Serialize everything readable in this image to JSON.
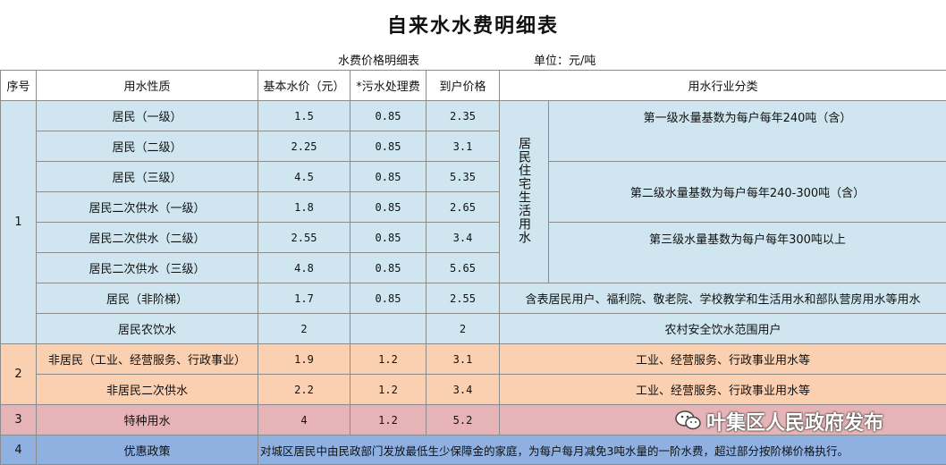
{
  "title": "自来水水费明细表",
  "subheader": {
    "left": "水费价格明细表",
    "right": "单位：元/吨"
  },
  "columns": [
    "序号",
    "用水性质",
    "基本水价（元）",
    "*污水处理费",
    "到户价格",
    "用水行业分类"
  ],
  "group1": {
    "no": "1",
    "residential_label": "居民住宅生活用水",
    "rows": [
      {
        "type": "居民（一级）",
        "base": "1.5",
        "sewage": "0.85",
        "price": "2.35"
      },
      {
        "type": "居民（二级）",
        "base": "2.25",
        "sewage": "0.85",
        "price": "3.1"
      },
      {
        "type": "居民（三级）",
        "base": "4.5",
        "sewage": "0.85",
        "price": "5.35"
      },
      {
        "type": "居民二次供水（一级）",
        "base": "1.8",
        "sewage": "0.85",
        "price": "2.65"
      },
      {
        "type": "居民二次供水（二级）",
        "base": "2.55",
        "sewage": "0.85",
        "price": "3.4"
      },
      {
        "type": "居民二次供水（三级）",
        "base": "4.8",
        "sewage": "0.85",
        "price": "5.65"
      },
      {
        "type": "居民（非阶梯）",
        "base": "1.7",
        "sewage": "0.85",
        "price": "2.55"
      },
      {
        "type": "居民农饮水",
        "base": "2",
        "sewage": "",
        "price": "2"
      }
    ],
    "tier1": "第一级水量基数为每户每年240吨（含）",
    "tier2": "第二级水量基数为每户每年240-300吨（含）",
    "tier3": "第三级水量基数为每户每年300吨以上",
    "nontier": "含表居民用户、福利院、敬老院、学校教学和生活用水和部队营房用水等用水",
    "rural": "农村安全饮水范围用户"
  },
  "group2": {
    "no": "2",
    "rows": [
      {
        "type": "非居民（工业、经营服务、行政事业）",
        "base": "1.9",
        "sewage": "1.2",
        "price": "3.1",
        "category": "工业、经营服务、行政事业用水等"
      },
      {
        "type": "非居民二次供水",
        "base": "2.2",
        "sewage": "1.2",
        "price": "3.4",
        "category": "工业、经营服务、行政事业用水等"
      }
    ]
  },
  "group3": {
    "no": "3",
    "type": "特种用水",
    "base": "4",
    "sewage": "1.2",
    "price": "5.2",
    "category": ""
  },
  "group4": {
    "no": "4",
    "type": "优惠政策",
    "policy": "对城区居民中由民政部门发放最低生少保障金的家庭，为每户每月减免3吨水量的一阶水费，超过部分按阶梯价格执行。"
  },
  "watermark": {
    "text": "叶集区人民政府发布",
    "icon": "wechat-icon"
  },
  "colors": {
    "blue": "#cfe6f0",
    "orange": "#fad0b0",
    "pink": "#e6b4b6",
    "policy_blue": "#8fb1e2"
  }
}
